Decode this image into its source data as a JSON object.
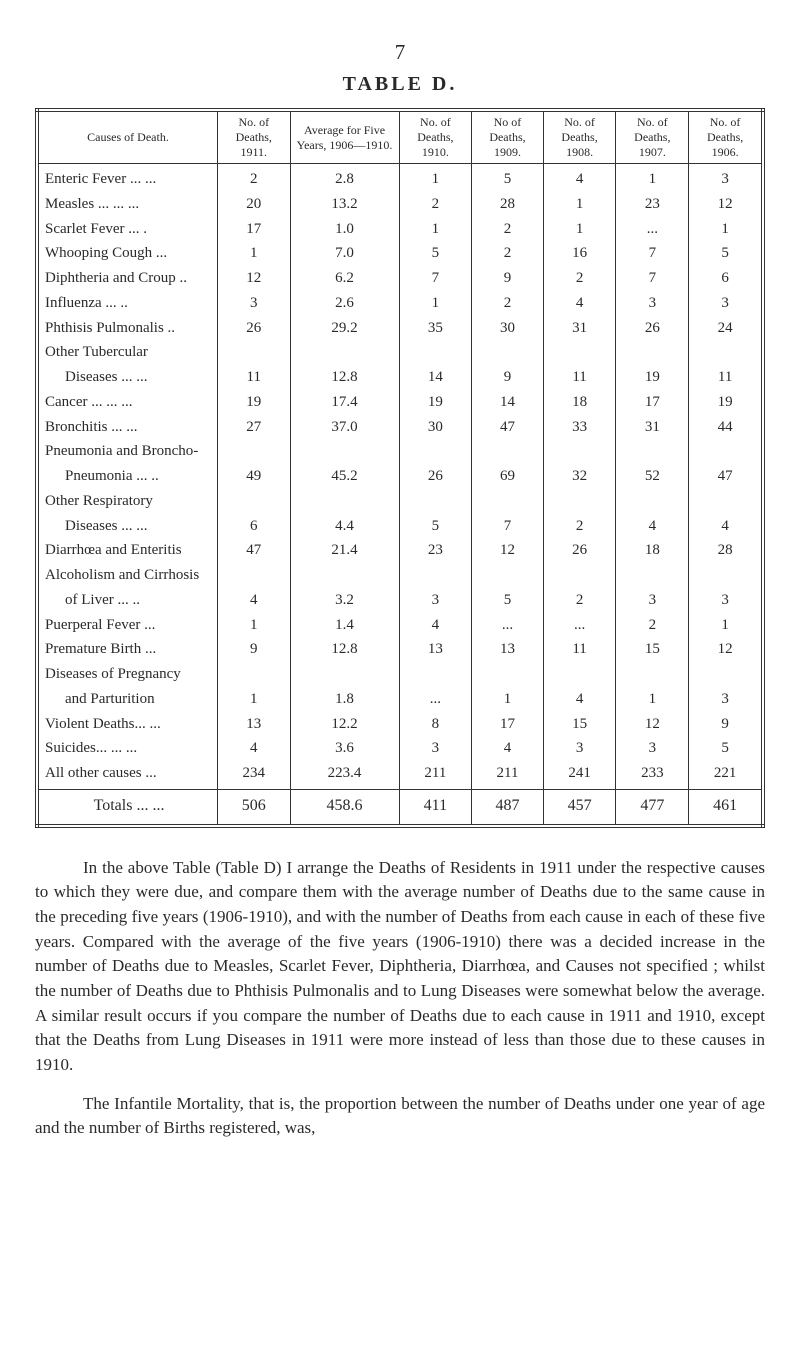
{
  "page_number": "7",
  "table_title": "TABLE D.",
  "columns": [
    "Causes of Death.",
    "No. of Deaths, 1911.",
    "Average for Five Years, 1906—1910.",
    "No. of Deaths, 1910.",
    "No of Deaths, 1909.",
    "No. of Deaths, 1908.",
    "No. of Deaths, 1907.",
    "No. of Deaths, 1906."
  ],
  "rows": [
    {
      "label": "Enteric Fever  ...        ...",
      "indent": false,
      "cells": [
        "2",
        "2.8",
        "1",
        "5",
        "4",
        "1",
        "3"
      ]
    },
    {
      "label": "Measles ...      ...       ...",
      "indent": false,
      "cells": [
        "20",
        "13.2",
        "2",
        "28",
        "1",
        "23",
        "12"
      ]
    },
    {
      "label": "Scarlet Fever   ...         .",
      "indent": false,
      "cells": [
        "17",
        "1.0",
        "1",
        "2",
        "1",
        "...",
        "1"
      ]
    },
    {
      "label": "Whooping Cough        ...",
      "indent": false,
      "cells": [
        "1",
        "7.0",
        "5",
        "2",
        "16",
        "7",
        "5"
      ]
    },
    {
      "label": "Diphtheria and Croup ..",
      "indent": false,
      "cells": [
        "12",
        "6.2",
        "7",
        "9",
        "2",
        "7",
        "6"
      ]
    },
    {
      "label": "Influenza           ...      ..",
      "indent": false,
      "cells": [
        "3",
        "2.6",
        "1",
        "2",
        "4",
        "3",
        "3"
      ]
    },
    {
      "label": "Phthisis Pulmonalis    ..",
      "indent": false,
      "cells": [
        "26",
        "29.2",
        "35",
        "30",
        "31",
        "26",
        "24"
      ]
    },
    {
      "label": "Other Tubercular",
      "indent": false,
      "cells": [
        "",
        "",
        "",
        "",
        "",
        "",
        ""
      ]
    },
    {
      "label": "Diseases       ...        ...",
      "indent": true,
      "cells": [
        "11",
        "12.8",
        "14",
        "9",
        "11",
        "19",
        "11"
      ]
    },
    {
      "label": "Cancer  ...       ...        ...",
      "indent": false,
      "cells": [
        "19",
        "17.4",
        "19",
        "14",
        "18",
        "17",
        "19"
      ]
    },
    {
      "label": "Bronchitis          ...      ...",
      "indent": false,
      "cells": [
        "27",
        "37.0",
        "30",
        "47",
        "33",
        "31",
        "44"
      ]
    },
    {
      "label": "Pneumonia and Broncho-",
      "indent": false,
      "cells": [
        "",
        "",
        "",
        "",
        "",
        "",
        ""
      ]
    },
    {
      "label": "Pneumonia ...          ..",
      "indent": true,
      "cells": [
        "49",
        "45.2",
        "26",
        "69",
        "32",
        "52",
        "47"
      ]
    },
    {
      "label": "Other Respiratory",
      "indent": false,
      "cells": [
        "",
        "",
        "",
        "",
        "",
        "",
        ""
      ]
    },
    {
      "label": "Diseases      ...       ...",
      "indent": true,
      "cells": [
        "6",
        "4.4",
        "5",
        "7",
        "2",
        "4",
        "4"
      ]
    },
    {
      "label": "Diarrhœa and Enteritis",
      "indent": false,
      "cells": [
        "47",
        "21.4",
        "23",
        "12",
        "26",
        "18",
        "28"
      ]
    },
    {
      "label": "Alcoholism and Cirrhosis",
      "indent": false,
      "cells": [
        "",
        "",
        "",
        "",
        "",
        "",
        ""
      ]
    },
    {
      "label": "of Liver         ...        ..",
      "indent": true,
      "cells": [
        "4",
        "3.2",
        "3",
        "5",
        "2",
        "3",
        "3"
      ]
    },
    {
      "label": "Puerperal Fever           ...",
      "indent": false,
      "cells": [
        "1",
        "1.4",
        "4",
        "...",
        "...",
        "2",
        "1"
      ]
    },
    {
      "label": "Premature Birth           ...",
      "indent": false,
      "cells": [
        "9",
        "12.8",
        "13",
        "13",
        "11",
        "15",
        "12"
      ]
    },
    {
      "label": "Diseases   of   Pregnancy",
      "indent": false,
      "cells": [
        "",
        "",
        "",
        "",
        "",
        "",
        ""
      ]
    },
    {
      "label": "and Parturition",
      "indent": true,
      "cells": [
        "1",
        "1.8",
        "...",
        "1",
        "4",
        "1",
        "3"
      ]
    },
    {
      "label": "Violent Deaths...        ...",
      "indent": false,
      "cells": [
        "13",
        "12.2",
        "8",
        "17",
        "15",
        "12",
        "9"
      ]
    },
    {
      "label": "Suicides...       ...        ...",
      "indent": false,
      "cells": [
        "4",
        "3.6",
        "3",
        "4",
        "3",
        "3",
        "5"
      ]
    },
    {
      "label": "All other causes        ...",
      "indent": false,
      "cells": [
        "234",
        "223.4",
        "211",
        "211",
        "241",
        "233",
        "221"
      ]
    }
  ],
  "totals": {
    "label": "Totals ...       ...",
    "cells": [
      "506",
      "458.6",
      "411",
      "487",
      "457",
      "477",
      "461"
    ]
  },
  "paragraphs": [
    "In the above Table (Table D) I arrange the Deaths of Residents in 1911 under the respective causes to which they were due, and compare them with the average number of Deaths due to the same cause in the preceding five years (1906-1910), and with the number of Deaths from each cause in each of these five years. Compared with the average of the five years (1906-1910) there was a decided increase in the number of Deaths due to Measles, Scarlet Fever, Diphtheria, Diarrhœa, and Causes not specified ; whilst the number of Deaths due to Phthisis Pulmonalis and to Lung Diseases were somewhat below the average. A similar result occurs if you compare the number of Deaths due to each cause in 1911 and 1910, except that the Deaths from Lung Diseases in 1911 were more instead of less than those due to these causes in 1910.",
    "The Infantile Mortality, that is, the proportion between the number of Deaths under one year of age and the number of Births registered, was,"
  ]
}
